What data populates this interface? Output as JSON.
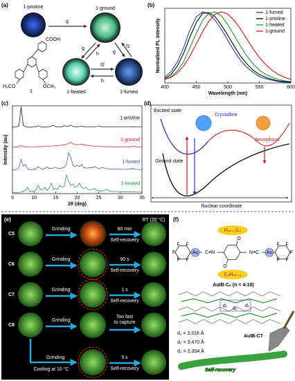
{
  "panel_labels": [
    "(a)",
    "(b)",
    "(c)",
    "(d)",
    "(e)",
    "(f)"
  ],
  "panel_a": {
    "states": [
      "1-pristine",
      "1-ground",
      "1-heated",
      "1-fumed"
    ],
    "arrows": [
      "g",
      "g",
      "h",
      "f1",
      "g",
      "f2",
      "h"
    ],
    "molecule": {
      "groups": [
        "COOH",
        "H₃CO",
        "OCH₃"
      ],
      "label": "1"
    }
  },
  "chart_data": [
    {
      "type": "line",
      "xlabel": "Wavelength (nm)",
      "ylabel": "Normalized PL intensity",
      "x": [
        400,
        410,
        420,
        430,
        440,
        450,
        460,
        470,
        480,
        490,
        500,
        510,
        520,
        530,
        540,
        550,
        560,
        570,
        580,
        590,
        600
      ],
      "xlim": [
        400,
        600
      ],
      "xticks": [
        400,
        450,
        500,
        550,
        600
      ],
      "ylim": [
        0,
        1.05
      ],
      "legend": "upper right",
      "series": [
        {
          "name": "1-fumed",
          "color": "#1f3fbf",
          "values": [
            0.08,
            0.16,
            0.3,
            0.5,
            0.75,
            0.93,
            1.0,
            0.97,
            0.88,
            0.75,
            0.6,
            0.45,
            0.32,
            0.22,
            0.15,
            0.09,
            0.06,
            0.04,
            0.02,
            0.01,
            0.01
          ]
        },
        {
          "name": "1-pristine",
          "color": "#000000",
          "values": [
            0.06,
            0.12,
            0.24,
            0.42,
            0.65,
            0.85,
            0.98,
            0.99,
            0.93,
            0.81,
            0.67,
            0.52,
            0.38,
            0.27,
            0.18,
            0.12,
            0.08,
            0.05,
            0.03,
            0.02,
            0.01
          ]
        },
        {
          "name": "1-heated",
          "color": "#1a9a3a",
          "values": [
            0.05,
            0.09,
            0.17,
            0.3,
            0.5,
            0.7,
            0.88,
            0.98,
            1.0,
            0.94,
            0.82,
            0.67,
            0.52,
            0.38,
            0.27,
            0.18,
            0.12,
            0.08,
            0.05,
            0.03,
            0.02
          ]
        },
        {
          "name": "1-ground",
          "color": "#e01010",
          "values": [
            0.05,
            0.08,
            0.14,
            0.24,
            0.38,
            0.55,
            0.72,
            0.87,
            0.97,
            1.0,
            0.97,
            0.88,
            0.76,
            0.62,
            0.48,
            0.36,
            0.26,
            0.18,
            0.12,
            0.08,
            0.05
          ]
        }
      ]
    },
    {
      "type": "line",
      "waterfall": true,
      "xlabel": "2θ (deg)",
      "ylabel": "Intensity (au)",
      "x": [
        5,
        5.5,
        6,
        6.5,
        7,
        7.5,
        8,
        8.5,
        9,
        9.5,
        10,
        10.5,
        11,
        11.5,
        12,
        12.5,
        13,
        13.5,
        14,
        14.5,
        15,
        15.5,
        16,
        16.5,
        17,
        17.5,
        18,
        18.5,
        19,
        19.5,
        20,
        20.5,
        21,
        21.5,
        22,
        22.5,
        23,
        23.5,
        24,
        24.5,
        25,
        25.5,
        26,
        26.5,
        27,
        27.5,
        28,
        28.5,
        29,
        29.5,
        30,
        30.5,
        31,
        31.5,
        32,
        32.5,
        33,
        33.5,
        34,
        34.5,
        35
      ],
      "xlim": [
        5,
        35
      ],
      "xticks": [
        5,
        10,
        15,
        20,
        25,
        30,
        35
      ],
      "ylim": [
        0,
        1
      ],
      "series": [
        {
          "name": "1-pristine",
          "color": "#000000",
          "values": [
            0.03,
            0.03,
            0.04,
            0.1,
            1.0,
            0.12,
            0.04,
            0.03,
            0.03,
            0.03,
            0.04,
            0.05,
            0.1,
            0.04,
            0.03,
            0.03,
            0.04,
            0.05,
            0.08,
            0.12,
            0.05,
            0.04,
            0.04,
            0.05,
            0.1,
            0.06,
            0.08,
            0.12,
            0.06,
            0.05,
            0.05,
            0.06,
            0.08,
            0.05,
            0.04,
            0.04,
            0.04,
            0.04,
            0.05,
            0.06,
            0.08,
            0.05,
            0.04,
            0.04,
            0.04,
            0.04,
            0.04,
            0.04,
            0.04,
            0.04,
            0.04,
            0.04,
            0.04,
            0.04,
            0.04,
            0.04,
            0.05,
            0.04,
            0.04,
            0.04,
            0.04
          ]
        },
        {
          "name": "1-ground",
          "color": "#e01010",
          "values": [
            0.12,
            0.12,
            0.13,
            0.15,
            0.2,
            0.15,
            0.14,
            0.13,
            0.13,
            0.13,
            0.14,
            0.14,
            0.15,
            0.15,
            0.15,
            0.16,
            0.16,
            0.17,
            0.18,
            0.18,
            0.19,
            0.2,
            0.21,
            0.22,
            0.24,
            0.26,
            0.3,
            0.35,
            0.28,
            0.25,
            0.24,
            0.25,
            0.27,
            0.24,
            0.22,
            0.2,
            0.19,
            0.18,
            0.17,
            0.16,
            0.16,
            0.15,
            0.15,
            0.15,
            0.14,
            0.14,
            0.14,
            0.14,
            0.14,
            0.14,
            0.14,
            0.14,
            0.14,
            0.14,
            0.14,
            0.14,
            0.18,
            0.14,
            0.13,
            0.13,
            0.13
          ]
        },
        {
          "name": "1-fumed",
          "color": "#3344bb",
          "values": [
            0.08,
            0.08,
            0.1,
            0.2,
            0.6,
            0.25,
            0.35,
            0.15,
            0.1,
            0.1,
            0.12,
            0.15,
            0.25,
            0.15,
            0.12,
            0.15,
            0.22,
            0.15,
            0.15,
            0.18,
            0.22,
            0.15,
            0.15,
            0.18,
            0.2,
            0.35,
            0.9,
            0.7,
            0.3,
            0.25,
            0.3,
            0.25,
            0.35,
            0.2,
            0.18,
            0.17,
            0.2,
            0.18,
            0.25,
            0.18,
            0.16,
            0.18,
            0.2,
            0.15,
            0.14,
            0.13,
            0.13,
            0.12,
            0.12,
            0.12,
            0.12,
            0.11,
            0.11,
            0.11,
            0.12,
            0.12,
            0.16,
            0.11,
            0.11,
            0.1,
            0.1
          ]
        },
        {
          "name": "1-heated",
          "color": "#1a8a3a",
          "values": [
            0.05,
            0.05,
            0.05,
            0.06,
            0.07,
            0.1,
            0.15,
            0.3,
            0.12,
            0.1,
            0.12,
            0.2,
            0.4,
            0.18,
            0.2,
            0.3,
            0.15,
            0.25,
            0.5,
            0.2,
            0.25,
            0.2,
            0.4,
            0.3,
            0.35,
            0.9,
            0.6,
            0.4,
            0.45,
            0.3,
            0.35,
            0.5,
            0.3,
            0.25,
            0.3,
            0.2,
            0.18,
            0.2,
            0.25,
            0.15,
            0.15,
            0.12,
            0.14,
            0.18,
            0.2,
            0.12,
            0.1,
            0.1,
            0.1,
            0.09,
            0.1,
            0.08,
            0.08,
            0.08,
            0.08,
            0.08,
            0.09,
            0.07,
            0.07,
            0.07,
            0.07
          ]
        }
      ]
    }
  ],
  "panel_d": {
    "excited": "Excited state",
    "crystalline": "Crystalline",
    "amorphous": "Amorphous",
    "ground": "Ground state",
    "coordinate": "Nuclear coordinate"
  },
  "panel_e": {
    "header": "RT (20 °C)",
    "rows": [
      {
        "sample": "C5",
        "action": "Grinding",
        "time": "60 min",
        "result": "Self-recovery"
      },
      {
        "sample": "C6",
        "action": "Grinding",
        "time": "90 s",
        "result": "Self-recovery"
      },
      {
        "sample": "C7",
        "action": "Grinding",
        "time": "1 s",
        "result": "Self-recovery"
      },
      {
        "sample": "C8",
        "action": "Grinding",
        "note": [
          "Too fast",
          "to capture"
        ]
      }
    ],
    "cooling": {
      "action": "Grinding",
      "condition": "Cooling at 10 °C",
      "time": "5 s",
      "result": "Self-recovery"
    }
  },
  "panel_f": {
    "substituent_top": "H₂ₙ₊₁Cₙ",
    "substituent_bottom": "CₙH₂ₙ₊₁",
    "metal": [
      "Au",
      "Au"
    ],
    "linkers": [
      "C≡N",
      "N≡C"
    ],
    "oxygen": [
      "O",
      "O"
    ],
    "fluorine": [
      "F",
      "F",
      "F",
      "F",
      "F",
      "F",
      "F",
      "F",
      "F",
      "F"
    ],
    "compound": "AuIB-Cₙ (n = 4-10)",
    "packing_labels": [
      "d₁",
      "d₂",
      "d₃"
    ],
    "crystal": "AuIB-C7",
    "distances": [
      "d₁ = 3.318 Å",
      "d₂ = 3.470 Å",
      "d₃ = 2.354 Å"
    ],
    "banner": "Self-recovery"
  }
}
